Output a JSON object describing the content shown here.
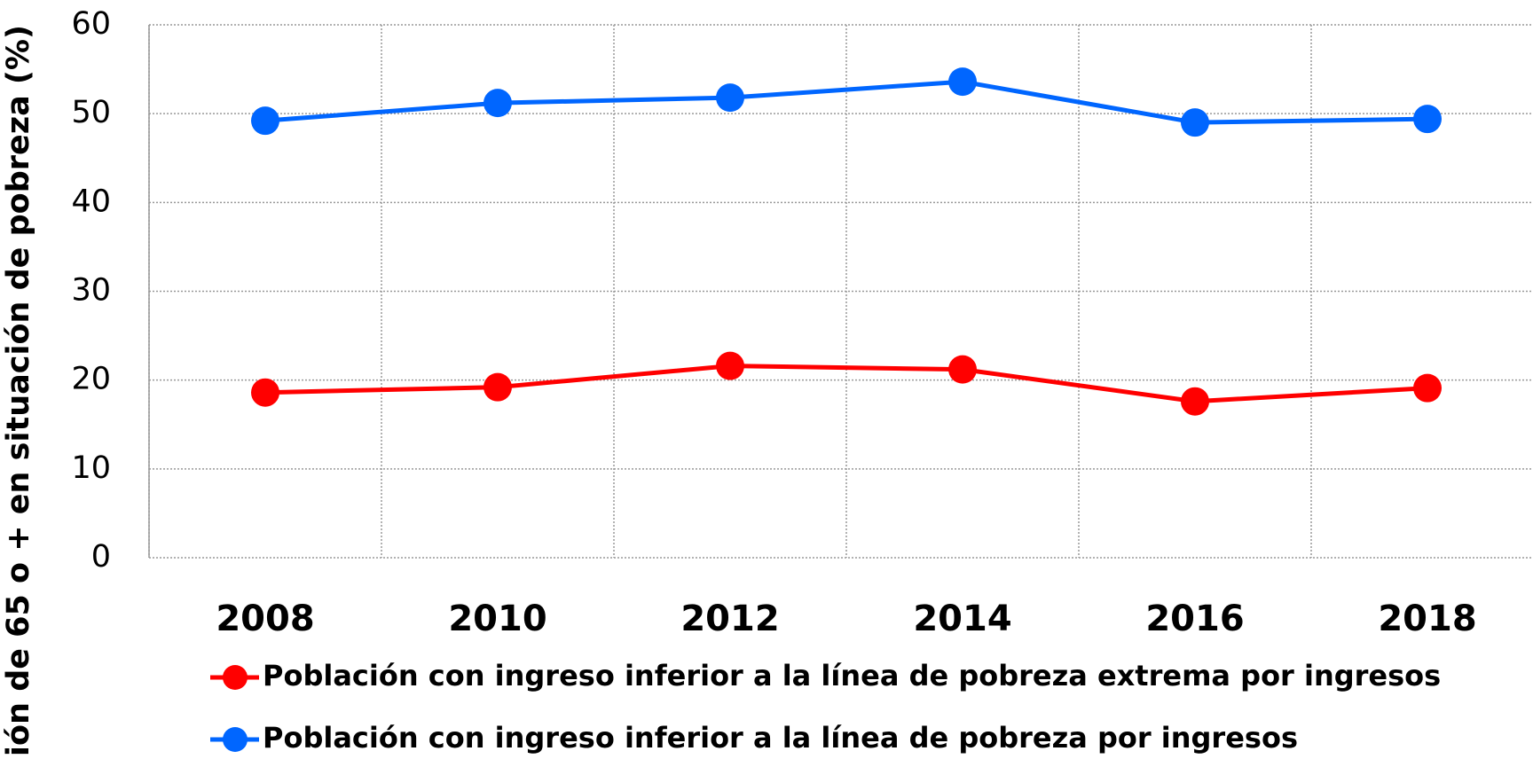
{
  "chart_data": {
    "type": "line",
    "y_label": "ión de 65 o + en situación de pobreza (%)",
    "categories": [
      "2008",
      "2010",
      "2012",
      "2014",
      "2016",
      "2018"
    ],
    "series": [
      {
        "name": "Población con ingreso inferior a la línea de pobreza extrema por ingresos",
        "color": "#ff0000",
        "values": [
          18.6,
          19.2,
          21.6,
          21.2,
          17.6,
          19.1
        ]
      },
      {
        "name": "Población con ingreso inferior a la línea de pobreza por ingresos",
        "color": "#0066ff",
        "values": [
          49.2,
          51.2,
          51.8,
          53.6,
          49.0,
          49.4
        ]
      }
    ],
    "ylim": [
      0,
      60
    ],
    "yticks": [
      0,
      10,
      20,
      30,
      40,
      50,
      60
    ],
    "grid": true,
    "legend": "bottom"
  }
}
